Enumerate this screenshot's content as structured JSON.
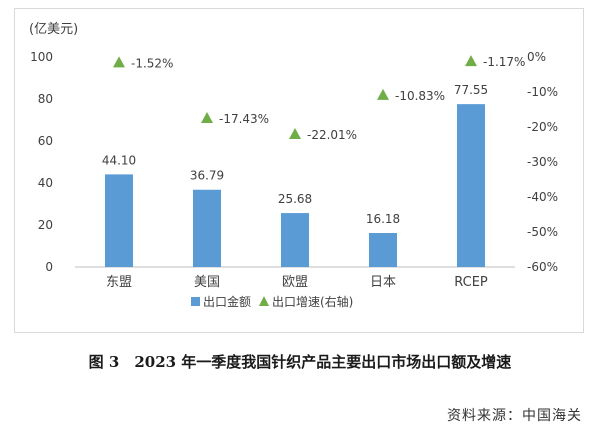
{
  "chart_data": {
    "type": "bar",
    "y_unit_label": "(亿美元)",
    "categories": [
      "东盟",
      "美国",
      "欧盟",
      "日本",
      "RCEP"
    ],
    "series": [
      {
        "name": "出口金额",
        "type": "bar",
        "axis": "left",
        "color": "#5b9bd5",
        "values": [
          44.1,
          36.79,
          25.68,
          16.18,
          77.55
        ],
        "labels": [
          "44.10",
          "36.79",
          "25.68",
          "16.18",
          "77.55"
        ]
      },
      {
        "name": "出口增速(右轴)",
        "type": "scatter",
        "marker": "triangle",
        "axis": "right",
        "color": "#70ad47",
        "values": [
          -1.52,
          -17.43,
          -22.01,
          -10.83,
          -1.17
        ],
        "labels": [
          "-1.52%",
          "-17.43%",
          "-22.01%",
          "-10.83%",
          "-1.17%"
        ]
      }
    ],
    "y_left": {
      "min": 0,
      "max": 100,
      "step": 20,
      "ticks": [
        "0",
        "20",
        "40",
        "60",
        "80",
        "100"
      ]
    },
    "y_right": {
      "min": -60,
      "max": 0,
      "step": 10,
      "ticks": [
        "-60%",
        "-50%",
        "-40%",
        "-30%",
        "-20%",
        "-10%",
        "0%"
      ]
    },
    "grid": false,
    "legend": "bottom"
  },
  "caption": "图 3　2023 年一季度我国针织产品主要出口市场出口额及增速",
  "source": "资料来源：中国海关"
}
